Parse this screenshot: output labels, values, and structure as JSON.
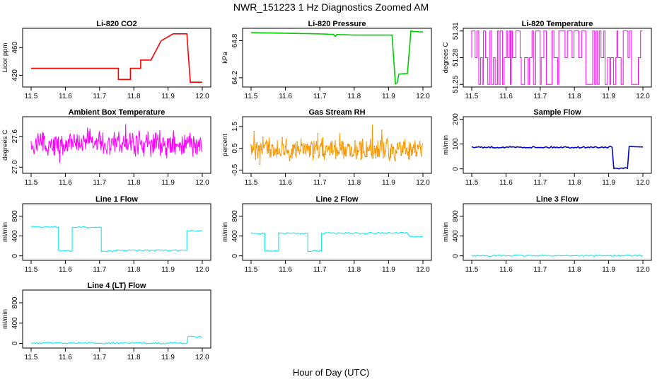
{
  "title": "NWR_151223  1 Hz Diagnostics Zoomed AM",
  "xlabel": "Hour of Day (UTC)",
  "chart_data": [
    {
      "type": "line",
      "title": "Li-820 CO2",
      "ylabel": "Licor ppm",
      "color": "#ff0000",
      "xlim": [
        11.5,
        12.0
      ],
      "ylim": [
        403,
        488
      ],
      "x_ticks": [
        "11.5",
        "11.6",
        "11.7",
        "11.8",
        "11.9",
        "12.0"
      ],
      "y_ticks": [
        "420",
        "460"
      ],
      "y_tick_values": [
        420,
        460
      ],
      "series": [
        {
          "x": [
            11.5,
            11.755,
            11.755,
            11.79,
            11.79,
            11.82,
            11.82,
            11.85,
            11.85,
            11.88,
            11.88,
            11.915,
            11.915,
            11.955,
            11.965,
            12.0
          ],
          "values": [
            430,
            430,
            414,
            414,
            430,
            430,
            442,
            442,
            442,
            470,
            470,
            480,
            480,
            480,
            410,
            410
          ]
        }
      ]
    },
    {
      "type": "line",
      "title": "Li-820 Pressure",
      "ylabel": "kPa",
      "color": "#00cc00",
      "xlim": [
        11.5,
        12.0
      ],
      "ylim": [
        64.05,
        65.0
      ],
      "x_ticks": [
        "11.5",
        "11.6",
        "11.7",
        "11.8",
        "11.9",
        "12.0"
      ],
      "y_ticks": [
        "64.2",
        "64.8"
      ],
      "y_tick_values": [
        64.2,
        64.8
      ],
      "series": [
        {
          "x": [
            11.5,
            11.6,
            11.7,
            11.74,
            11.745,
            11.75,
            11.8,
            11.9,
            11.91,
            11.92,
            11.925,
            11.93,
            11.955,
            11.96,
            11.965,
            11.97,
            12.0
          ],
          "values": [
            64.93,
            64.92,
            64.91,
            64.9,
            64.87,
            64.9,
            64.89,
            64.89,
            64.89,
            64.1,
            64.12,
            64.26,
            64.27,
            64.62,
            64.96,
            64.95,
            64.94
          ]
        }
      ]
    },
    {
      "type": "line",
      "title": "Li-820 Temperature",
      "ylabel": "degrees C",
      "color": "#ff00ff",
      "xlim": [
        11.5,
        12.0
      ],
      "ylim": [
        51.247,
        51.313
      ],
      "x_ticks": [
        "11.5",
        "11.6",
        "11.7",
        "11.8",
        "11.9",
        "12.0"
      ],
      "y_ticks": [
        "51.25",
        "51.28",
        "51.31"
      ],
      "y_tick_values": [
        51.25,
        51.28,
        51.31
      ],
      "series": [
        {
          "levels": [
            51.25,
            51.28,
            51.31
          ],
          "note_pattern": "rapid toggling between 51.25, 51.28 and 51.31"
        }
      ]
    },
    {
      "type": "line",
      "title": "Ambient Box Temperature",
      "ylabel": "degrees C",
      "color": "#ff00ff",
      "xlim": [
        11.5,
        12.0
      ],
      "ylim": [
        26.88,
        27.98
      ],
      "x_ticks": [
        "11.5",
        "11.6",
        "11.7",
        "11.8",
        "11.9",
        "12.0"
      ],
      "y_ticks": [
        "27.0",
        "27.6"
      ],
      "y_tick_values": [
        27.0,
        27.6
      ],
      "series": [
        {
          "mean": 27.45,
          "spread": 0.25
        }
      ]
    },
    {
      "type": "line",
      "title": "Gas Stream RH",
      "ylabel": "percent",
      "color": "#ff9900",
      "xlim": [
        11.5,
        12.0
      ],
      "ylim": [
        -0.65,
        1.95
      ],
      "x_ticks": [
        "11.5",
        "11.6",
        "11.7",
        "11.8",
        "11.9",
        "12.0"
      ],
      "y_ticks": [
        "-0.5",
        "0.5",
        "1.5"
      ],
      "y_tick_values": [
        -0.5,
        0.5,
        1.5
      ],
      "series": [
        {
          "mean": 0.45,
          "spread": 0.5
        }
      ]
    },
    {
      "type": "line",
      "title": "Sample Flow",
      "ylabel": "ml/min",
      "color": "#0000cc",
      "xlim": [
        11.5,
        12.0
      ],
      "ylim": [
        -18,
        210
      ],
      "x_ticks": [
        "11.5",
        "11.6",
        "11.7",
        "11.8",
        "11.9",
        "12.0"
      ],
      "y_ticks": [
        "0",
        "100",
        "200"
      ],
      "y_tick_values": [
        0,
        100,
        200
      ],
      "series": [
        {
          "x": [
            11.5,
            11.91,
            11.915,
            11.955,
            11.96,
            12.0
          ],
          "values": [
            87,
            87,
            2,
            2,
            90,
            88
          ]
        }
      ]
    },
    {
      "type": "line",
      "title": "Line 1 Flow",
      "ylabel": "ml/min",
      "color": "#00e5ee",
      "xlim": [
        11.5,
        12.0
      ],
      "ylim": [
        -90,
        1050
      ],
      "x_ticks": [
        "11.5",
        "11.6",
        "11.7",
        "11.8",
        "11.9",
        "12.0"
      ],
      "y_ticks": [
        "0",
        "400",
        "800"
      ],
      "y_tick_values": [
        0,
        400,
        800
      ],
      "series": [
        {
          "x": [
            11.5,
            11.58,
            11.58,
            11.62,
            11.62,
            11.705,
            11.705,
            11.75,
            11.75,
            11.955,
            11.955,
            12.0
          ],
          "values": [
            580,
            580,
            100,
            100,
            575,
            575,
            95,
            95,
            110,
            110,
            500,
            500
          ]
        }
      ]
    },
    {
      "type": "line",
      "title": "Line 2 Flow",
      "ylabel": "ml/min",
      "color": "#00e5ee",
      "xlim": [
        11.5,
        12.0
      ],
      "ylim": [
        -90,
        1050
      ],
      "x_ticks": [
        "11.5",
        "11.6",
        "11.7",
        "11.8",
        "11.9",
        "12.0"
      ],
      "y_ticks": [
        "0",
        "400",
        "800"
      ],
      "y_tick_values": [
        0,
        400,
        800
      ],
      "series": [
        {
          "x": [
            11.5,
            11.54,
            11.54,
            11.58,
            11.58,
            11.665,
            11.665,
            11.705,
            11.705,
            11.955,
            11.96,
            12.0
          ],
          "values": [
            455,
            455,
            100,
            100,
            455,
            455,
            100,
            100,
            460,
            460,
            390,
            390
          ]
        }
      ]
    },
    {
      "type": "line",
      "title": "Line 3 Flow",
      "ylabel": "ml/min",
      "color": "#00e5ee",
      "xlim": [
        11.5,
        12.0
      ],
      "ylim": [
        -90,
        1050
      ],
      "x_ticks": [
        "11.5",
        "11.6",
        "11.7",
        "11.8",
        "11.9",
        "12.0"
      ],
      "y_ticks": [
        "0",
        "400",
        "800"
      ],
      "y_tick_values": [
        0,
        400,
        800
      ],
      "series": [
        {
          "x": [
            11.5,
            12.0
          ],
          "values": [
            5,
            5
          ]
        }
      ]
    },
    {
      "type": "line",
      "title": "Line 4 (LT) Flow",
      "ylabel": "ml/min",
      "color": "#00e5ee",
      "xlim": [
        11.5,
        12.0
      ],
      "ylim": [
        -90,
        1050
      ],
      "x_ticks": [
        "11.5",
        "11.6",
        "11.7",
        "11.8",
        "11.9",
        "12.0"
      ],
      "y_ticks": [
        "0",
        "400",
        "800"
      ],
      "y_tick_values": [
        0,
        400,
        800
      ],
      "series": [
        {
          "x": [
            11.5,
            11.955,
            11.958,
            12.0
          ],
          "values": [
            8,
            8,
            130,
            130
          ]
        }
      ]
    }
  ]
}
